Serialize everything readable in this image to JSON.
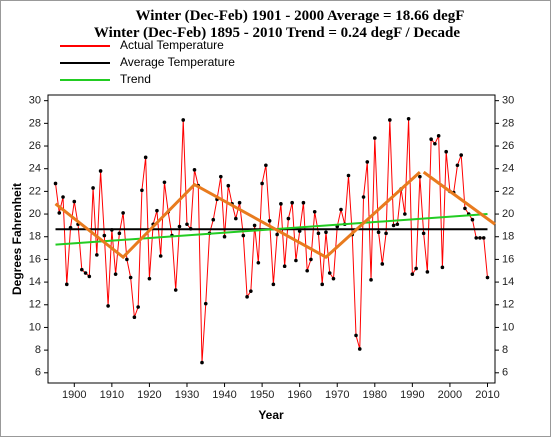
{
  "chart_data": {
    "type": "line",
    "title": "Winter (Dec-Feb) 1901 - 2000 Average = 18.66 degF",
    "subtitle": "Winter (Dec-Feb) 1895 - 2010 Trend = 0.24 degF / Decade",
    "xlabel": "Year",
    "ylabel": "Degrees Fahrenheit",
    "xlim": [
      1893,
      2012
    ],
    "ylim": [
      5.1,
      30.5
    ],
    "xticks": [
      1900,
      1910,
      1920,
      1930,
      1940,
      1950,
      1960,
      1970,
      1980,
      1990,
      2000,
      2010
    ],
    "yticks": [
      6,
      8,
      10,
      12,
      14,
      16,
      18,
      20,
      22,
      24,
      26,
      28,
      30
    ],
    "series": [
      {
        "name": "Actual Temperature",
        "color": "#ff0000",
        "markers": true,
        "x": [
          1895,
          1896,
          1897,
          1898,
          1899,
          1900,
          1901,
          1902,
          1903,
          1904,
          1905,
          1906,
          1907,
          1908,
          1909,
          1910,
          1911,
          1912,
          1913,
          1914,
          1915,
          1916,
          1917,
          1918,
          1919,
          1920,
          1921,
          1922,
          1923,
          1924,
          1925,
          1926,
          1927,
          1928,
          1929,
          1930,
          1931,
          1932,
          1933,
          1934,
          1935,
          1936,
          1937,
          1938,
          1939,
          1940,
          1941,
          1942,
          1943,
          1944,
          1945,
          1946,
          1947,
          1948,
          1949,
          1950,
          1951,
          1952,
          1953,
          1954,
          1955,
          1956,
          1957,
          1958,
          1959,
          1960,
          1961,
          1962,
          1963,
          1964,
          1965,
          1966,
          1967,
          1968,
          1969,
          1970,
          1971,
          1972,
          1973,
          1974,
          1975,
          1976,
          1977,
          1978,
          1979,
          1980,
          1981,
          1982,
          1983,
          1984,
          1985,
          1986,
          1987,
          1988,
          1989,
          1990,
          1991,
          1992,
          1993,
          1994,
          1995,
          1996,
          1997,
          1998,
          1999,
          2000,
          2001,
          2002,
          2003,
          2004,
          2005,
          2006,
          2007,
          2008,
          2009,
          2010
        ],
        "values": [
          22.7,
          20.1,
          21.5,
          13.8,
          18.8,
          21.1,
          19.1,
          15.1,
          14.8,
          14.5,
          22.3,
          16.4,
          23.8,
          18.1,
          11.9,
          18.6,
          14.7,
          18.3,
          20.1,
          16.0,
          14.4,
          10.9,
          11.8,
          22.1,
          25.0,
          14.3,
          19.1,
          20.3,
          16.3,
          22.8,
          20.2,
          18.1,
          13.3,
          18.9,
          28.3,
          19.1,
          18.7,
          23.9,
          22.5,
          6.9,
          12.1,
          18.3,
          19.5,
          21.3,
          23.3,
          18.0,
          22.5,
          20.9,
          19.6,
          21.0,
          18.1,
          12.7,
          13.2,
          19.0,
          15.7,
          22.7,
          24.3,
          19.4,
          13.8,
          18.2,
          20.9,
          15.4,
          19.6,
          21.0,
          15.9,
          18.5,
          21.0,
          15.0,
          16.0,
          20.2,
          18.3,
          13.8,
          18.4,
          14.8,
          14.3,
          18.9,
          20.4,
          19.1,
          23.4,
          18.2,
          9.3,
          8.1,
          21.5,
          24.6,
          14.2,
          26.7,
          18.4,
          15.6,
          18.3,
          28.3,
          19.0,
          19.1,
          22.2,
          20.0,
          28.4,
          14.7,
          15.2,
          23.3,
          18.3,
          14.9,
          26.6,
          26.2,
          26.9,
          15.3,
          25.5,
          22.0,
          21.9,
          24.3,
          25.2,
          20.5,
          20.0,
          19.5,
          17.9,
          17.9,
          17.9,
          14.4
        ]
      },
      {
        "name": "Average Temperature",
        "color": "#000000",
        "x": [
          1895,
          2010
        ],
        "values": [
          18.66,
          18.66
        ]
      },
      {
        "name": "Trend",
        "color": "#22cc22",
        "x": [
          1895,
          2010
        ],
        "values": [
          17.3,
          20.0
        ]
      },
      {
        "color": "#e87b1e",
        "x": [
          1895,
          1913,
          1932,
          1967,
          1992
        ],
        "values": [
          20.9,
          16.2,
          22.6,
          16.2,
          23.7
        ]
      },
      {
        "color": "#e87b1e",
        "x": [
          1993,
          2012
        ],
        "values": [
          23.7,
          19.1
        ]
      }
    ]
  }
}
